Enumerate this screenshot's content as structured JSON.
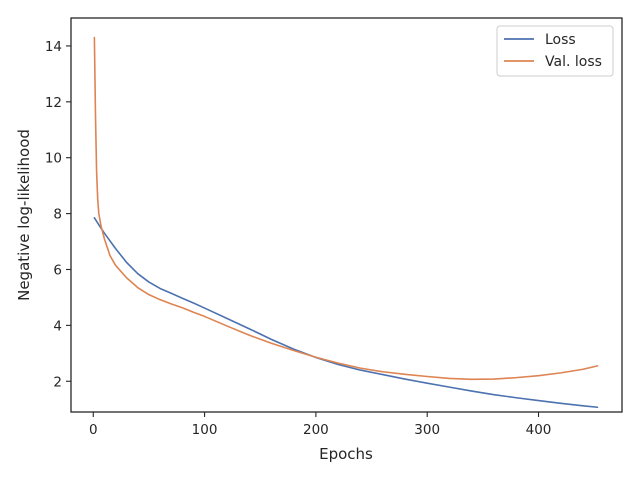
{
  "chart_data": {
    "type": "line",
    "title": "",
    "xlabel": "Epochs",
    "ylabel": "Negative log-likelihood",
    "xlim": [
      -20,
      475
    ],
    "ylim": [
      0.9,
      15.0
    ],
    "xticks": [
      0,
      100,
      200,
      300,
      400
    ],
    "yticks": [
      2,
      4,
      6,
      8,
      10,
      12,
      14
    ],
    "grid": false,
    "legend_position": "top-right",
    "series": [
      {
        "name": "Loss",
        "color": "#4c72b0",
        "x": [
          1,
          5,
          10,
          20,
          30,
          40,
          50,
          60,
          70,
          80,
          90,
          100,
          120,
          140,
          160,
          180,
          200,
          220,
          240,
          260,
          280,
          300,
          320,
          340,
          360,
          380,
          400,
          420,
          440,
          453
        ],
        "y": [
          7.85,
          7.6,
          7.3,
          6.75,
          6.25,
          5.85,
          5.55,
          5.32,
          5.15,
          4.97,
          4.8,
          4.62,
          4.25,
          3.88,
          3.5,
          3.15,
          2.85,
          2.6,
          2.4,
          2.24,
          2.08,
          1.93,
          1.79,
          1.65,
          1.52,
          1.41,
          1.31,
          1.21,
          1.12,
          1.07
        ]
      },
      {
        "name": "Val. loss",
        "color": "#dd8452",
        "x": [
          1,
          2,
          3,
          4,
          5,
          7,
          10,
          15,
          20,
          30,
          40,
          50,
          60,
          70,
          80,
          90,
          100,
          120,
          140,
          160,
          180,
          200,
          220,
          240,
          260,
          280,
          300,
          320,
          340,
          360,
          380,
          400,
          420,
          440,
          453
        ],
        "y": [
          14.3,
          11.5,
          9.5,
          8.5,
          8.0,
          7.55,
          7.1,
          6.5,
          6.15,
          5.7,
          5.35,
          5.1,
          4.92,
          4.77,
          4.63,
          4.47,
          4.32,
          3.98,
          3.65,
          3.36,
          3.1,
          2.86,
          2.65,
          2.47,
          2.34,
          2.25,
          2.17,
          2.1,
          2.07,
          2.08,
          2.13,
          2.2,
          2.3,
          2.43,
          2.55
        ]
      }
    ]
  }
}
